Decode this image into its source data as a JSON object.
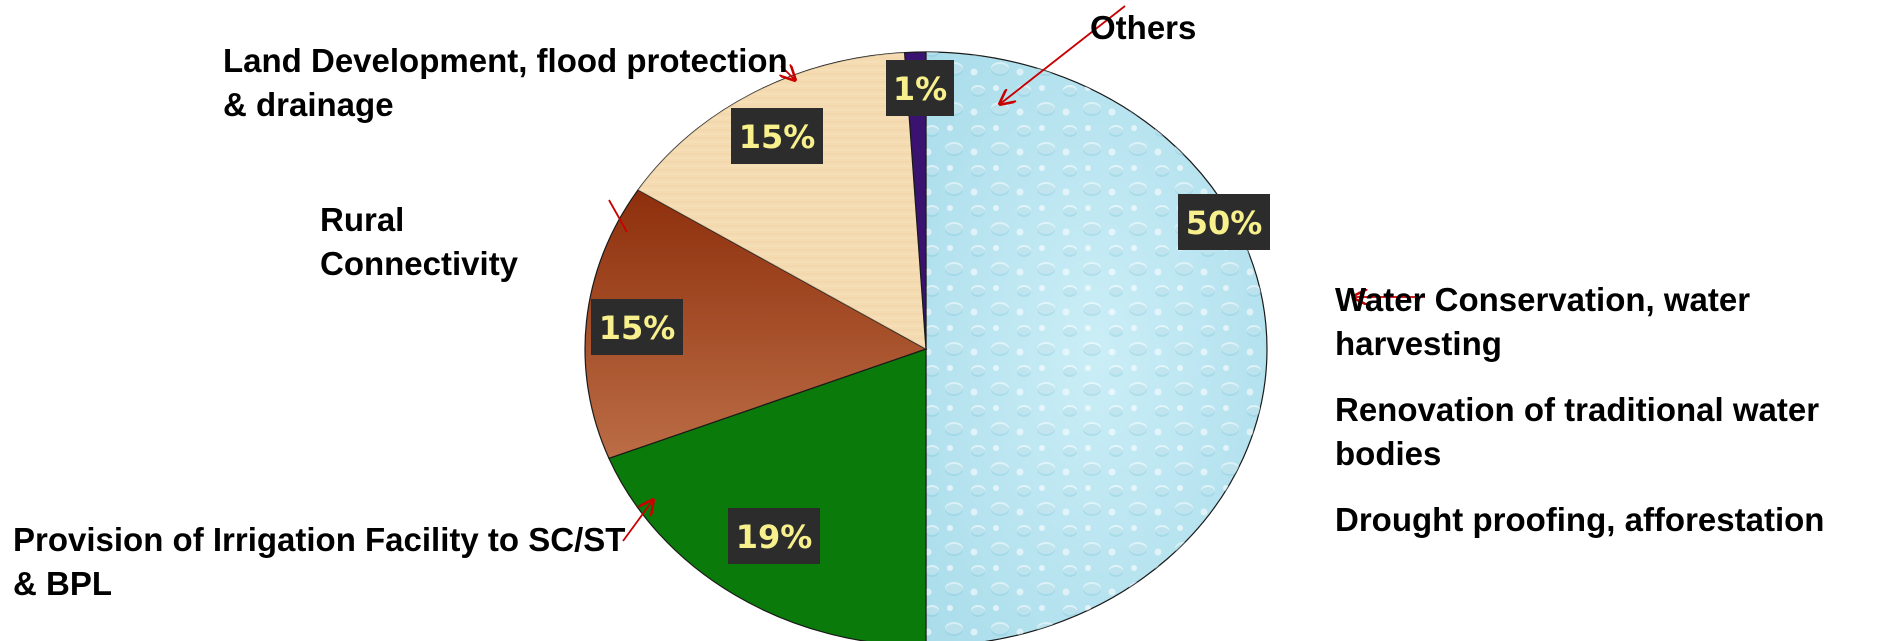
{
  "colors": {
    "water": "#bfe6f0",
    "irrigation": "#0a7a0a",
    "rural": "#a5522b",
    "land": "#f3d9ad",
    "others": "#3a1370",
    "arrow": "#c80000",
    "pct_box": "#2c2c2c",
    "pct_text": "#f7f08c"
  },
  "chart_data": {
    "type": "pie",
    "start_angle_deg": -90,
    "direction": "clockwise",
    "slices": [
      {
        "key": "water",
        "value": 50,
        "label": "50%"
      },
      {
        "key": "irrigation",
        "value": 19,
        "label": "19%"
      },
      {
        "key": "rural",
        "value": 15,
        "label": "15%"
      },
      {
        "key": "land",
        "value": 15,
        "label": "15%"
      },
      {
        "key": "others",
        "value": 1,
        "label": "1%"
      }
    ],
    "categories": {
      "others": [
        "Others"
      ],
      "land": [
        "Land Development, flood protection",
        "& drainage"
      ],
      "rural": [
        "Rural",
        "Connectivity"
      ],
      "irrigation": [
        "Provision of Irrigation Facility to SC/ST",
        "& BPL"
      ],
      "water": [
        "Water Conservation, water",
        "harvesting",
        "Renovation of traditional water",
        "bodies",
        "Drought proofing, afforestation"
      ]
    }
  }
}
